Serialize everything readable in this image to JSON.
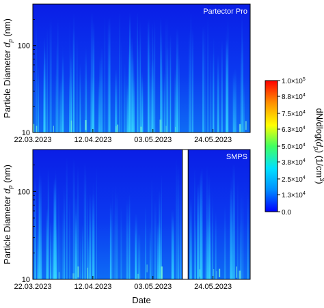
{
  "chart_data": [
    {
      "type": "heatmap",
      "panel_label": "Partector Pro",
      "ylabel_main": "Particle Diameter ",
      "ylabel_var": "d",
      "ylabel_sub": "p",
      "ylabel_unit": " (nm)",
      "yscale": "log",
      "ylim": [
        10,
        300
      ],
      "y_ticks": [
        {
          "value": 10,
          "label": "10"
        },
        {
          "value": 100,
          "label": "100"
        }
      ],
      "x_ticks": [
        "22.03.2023",
        "12.04.2023",
        "03.05.2023",
        "24.05.2023"
      ],
      "x_tick_days": [
        0,
        21,
        42,
        63
      ],
      "xlim_days": [
        0,
        76
      ],
      "gaps": []
    },
    {
      "type": "heatmap",
      "panel_label": "SMPS",
      "ylabel_main": "Particle Diameter ",
      "ylabel_var": "d",
      "ylabel_sub": "p",
      "ylabel_unit": " (nm)",
      "yscale": "log",
      "ylim": [
        10,
        300
      ],
      "y_ticks": [
        {
          "value": 10,
          "label": "10"
        },
        {
          "value": 100,
          "label": "100"
        }
      ],
      "x_ticks": [
        "22.03.2023",
        "12.04.2023",
        "03.05.2023",
        "24.05.2023"
      ],
      "x_tick_days": [
        0,
        21,
        42,
        63
      ],
      "xlim_days": [
        0,
        76
      ],
      "xlabel": "Date",
      "gaps": [
        [
          52.3,
          54.3
        ]
      ]
    }
  ],
  "colorbar": {
    "label_main": "dN/dlog(",
    "label_var": "d",
    "label_sub": "p",
    "label_close": ") (1/cm",
    "label_sup": "3",
    "label_end": ")",
    "range": [
      0,
      100000
    ],
    "ticks": [
      {
        "value": 100000,
        "base": "1.0×10",
        "exp": "5"
      },
      {
        "value": 88000,
        "base": "8.8×10",
        "exp": "4"
      },
      {
        "value": 75000,
        "base": "7.5×10",
        "exp": "4"
      },
      {
        "value": 63000,
        "base": "6.3×10",
        "exp": "4"
      },
      {
        "value": 50000,
        "base": "5.0×10",
        "exp": "4"
      },
      {
        "value": 38000,
        "base": "3.8×10",
        "exp": "4"
      },
      {
        "value": 25000,
        "base": "2.5×10",
        "exp": "4"
      },
      {
        "value": 13000,
        "base": "1.3×10",
        "exp": "4"
      },
      {
        "value": 0,
        "base": "0.0",
        "exp": ""
      }
    ],
    "colors": [
      "#0000ff",
      "#0090ff",
      "#00e0ff",
      "#40ff60",
      "#ffff00",
      "#ff9000",
      "#ff0000"
    ]
  }
}
